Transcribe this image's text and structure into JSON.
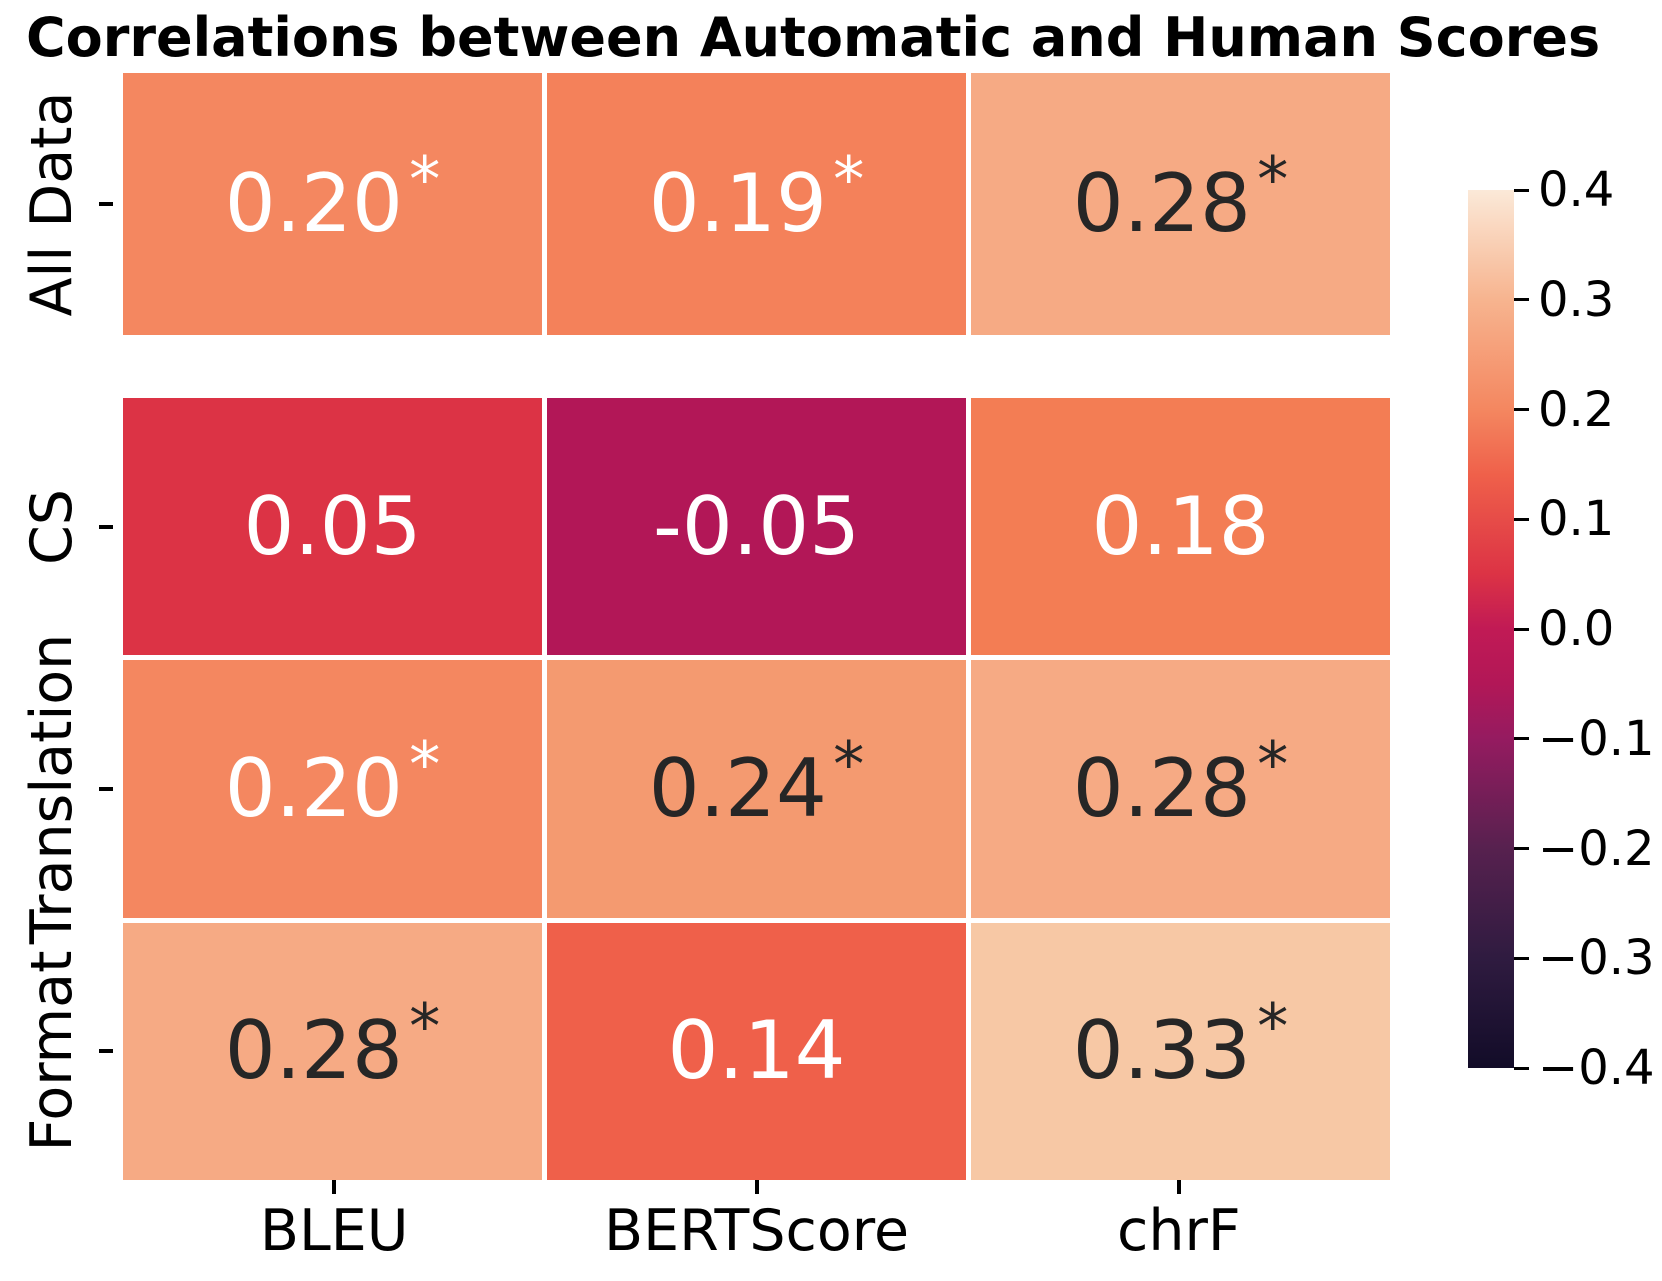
{
  "chart_data": {
    "type": "heatmap",
    "title": "Correlations between Automatic and Human Scores",
    "columns": [
      "BLEU",
      "BERTScore",
      "chrF"
    ],
    "significance_marker": "*",
    "value_range": [
      -0.4,
      0.4
    ],
    "colormap": "rocket",
    "legend_position": "right-colorbar",
    "row_groups": [
      {
        "name": "overall",
        "rows": [
          {
            "label": "All Data",
            "cells": [
              {
                "value": 0.2,
                "display": "0.20",
                "significant": true,
                "bg": "#f48760",
                "fg": "#ffffff"
              },
              {
                "value": 0.19,
                "display": "0.19",
                "significant": true,
                "bg": "#f4815a",
                "fg": "#ffffff"
              },
              {
                "value": 0.28,
                "display": "0.28",
                "significant": true,
                "bg": "#f6aa84",
                "fg": "#262626"
              }
            ]
          }
        ]
      },
      {
        "name": "categories",
        "rows": [
          {
            "label": "CS",
            "cells": [
              {
                "value": 0.05,
                "display": "0.05",
                "significant": false,
                "bg": "#dc3345",
                "fg": "#ffffff"
              },
              {
                "value": -0.05,
                "display": "-0.05",
                "significant": false,
                "bg": "#b21757",
                "fg": "#ffffff"
              },
              {
                "value": 0.18,
                "display": "0.18",
                "significant": false,
                "bg": "#f37d54",
                "fg": "#ffffff"
              }
            ]
          },
          {
            "label": "Translation",
            "cells": [
              {
                "value": 0.2,
                "display": "0.20",
                "significant": true,
                "bg": "#f48760",
                "fg": "#ffffff"
              },
              {
                "value": 0.24,
                "display": "0.24",
                "significant": true,
                "bg": "#f49a70",
                "fg": "#262626"
              },
              {
                "value": 0.28,
                "display": "0.28",
                "significant": true,
                "bg": "#f6aa84",
                "fg": "#262626"
              }
            ]
          },
          {
            "label": "Format",
            "cells": [
              {
                "value": 0.28,
                "display": "0.28",
                "significant": true,
                "bg": "#f6aa84",
                "fg": "#262626"
              },
              {
                "value": 0.14,
                "display": "0.14",
                "significant": false,
                "bg": "#ef604a",
                "fg": "#ffffff"
              },
              {
                "value": 0.33,
                "display": "0.33",
                "significant": true,
                "bg": "#f7c8a5",
                "fg": "#262626"
              }
            ]
          }
        ]
      }
    ],
    "colorbar": {
      "tick_labels": [
        "0.4",
        "0.3",
        "0.2",
        "0.1",
        "0.0",
        "−0.1",
        "−0.2",
        "−0.3",
        "−0.4"
      ],
      "tick_values": [
        0.4,
        0.3,
        0.2,
        0.1,
        0.0,
        -0.1,
        -0.2,
        -0.3,
        -0.4
      ],
      "gradient_stops": [
        {
          "pos": 0.0,
          "color": "#fbe9d8"
        },
        {
          "pos": 0.125,
          "color": "#f7b48f"
        },
        {
          "pos": 0.25,
          "color": "#f48760"
        },
        {
          "pos": 0.325,
          "color": "#ef604a"
        },
        {
          "pos": 0.4375,
          "color": "#dc3345"
        },
        {
          "pos": 0.5,
          "color": "#c11a55"
        },
        {
          "pos": 0.5625,
          "color": "#b21757"
        },
        {
          "pos": 0.625,
          "color": "#951b60"
        },
        {
          "pos": 0.75,
          "color": "#57214f"
        },
        {
          "pos": 0.875,
          "color": "#2f1b40"
        },
        {
          "pos": 1.0,
          "color": "#120c28"
        }
      ]
    }
  }
}
